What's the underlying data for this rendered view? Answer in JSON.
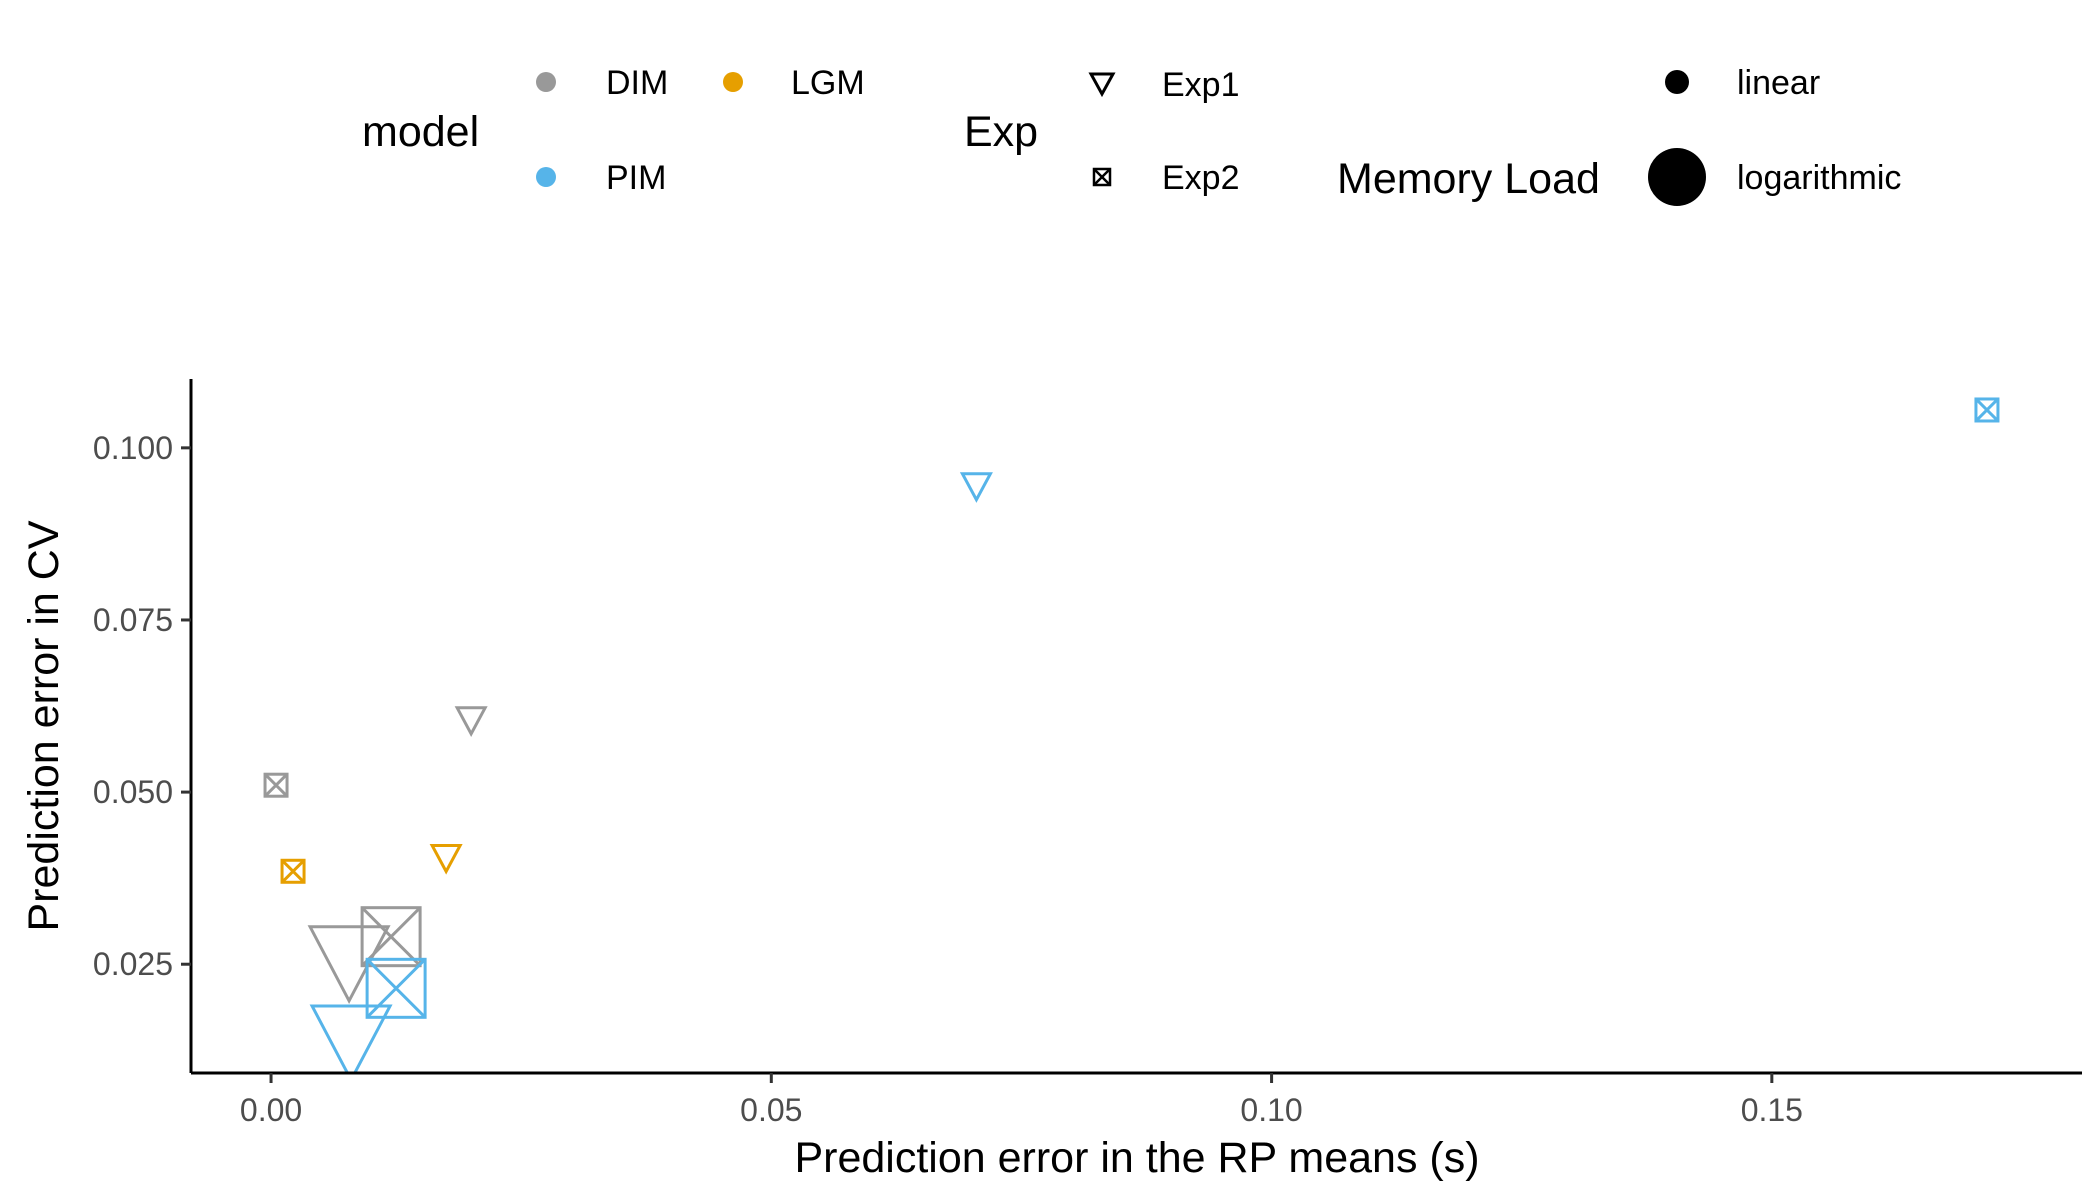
{
  "chart_data": {
    "type": "scatter",
    "title": "",
    "xlabel": "Prediction error in the RP means (s)",
    "ylabel": "Prediction error in CV",
    "xlim": [
      -0.008,
      0.181
    ],
    "ylim": [
      0.0092,
      0.11
    ],
    "x_ticks": [
      0.0,
      0.05,
      0.1,
      0.15
    ],
    "x_tick_labels": [
      "0.00",
      "0.05",
      "0.10",
      "0.15"
    ],
    "y_ticks": [
      0.025,
      0.05,
      0.075,
      0.1
    ],
    "y_tick_labels": [
      "0.025",
      "0.050",
      "0.075",
      "0.100"
    ],
    "grid": false,
    "legend_position": "top",
    "colors": {
      "DIM": "#999999",
      "LGM": "#E69F00",
      "PIM": "#56B4E9"
    },
    "legends": {
      "model": {
        "title": "model",
        "entries": [
          "DIM",
          "LGM",
          "PIM"
        ]
      },
      "exp": {
        "title": "Exp",
        "entries": [
          "Exp1",
          "Exp2"
        ]
      },
      "load": {
        "title": "Memory Load",
        "entries": [
          "linear",
          "logarithmic"
        ]
      }
    },
    "points": [
      {
        "model": "PIM",
        "exp": "Exp2",
        "load": "linear",
        "x": 0.1715,
        "y": 0.1055
      },
      {
        "model": "PIM",
        "exp": "Exp1",
        "load": "linear",
        "x": 0.0705,
        "y": 0.0945
      },
      {
        "model": "DIM",
        "exp": "Exp1",
        "load": "linear",
        "x": 0.02,
        "y": 0.0605
      },
      {
        "model": "DIM",
        "exp": "Exp2",
        "load": "linear",
        "x": 0.0005,
        "y": 0.051
      },
      {
        "model": "LGM",
        "exp": "Exp1",
        "load": "linear",
        "x": 0.0175,
        "y": 0.0405
      },
      {
        "model": "LGM",
        "exp": "Exp2",
        "load": "linear",
        "x": 0.0022,
        "y": 0.0385
      },
      {
        "model": "DIM",
        "exp": "Exp2",
        "load": "logarithmic",
        "x": 0.012,
        "y": 0.029
      },
      {
        "model": "DIM",
        "exp": "Exp1",
        "load": "logarithmic",
        "x": 0.0078,
        "y": 0.0255
      },
      {
        "model": "PIM",
        "exp": "Exp2",
        "load": "logarithmic",
        "x": 0.0125,
        "y": 0.0215
      },
      {
        "model": "PIM",
        "exp": "Exp1",
        "load": "logarithmic",
        "x": 0.008,
        "y": 0.014
      }
    ]
  }
}
